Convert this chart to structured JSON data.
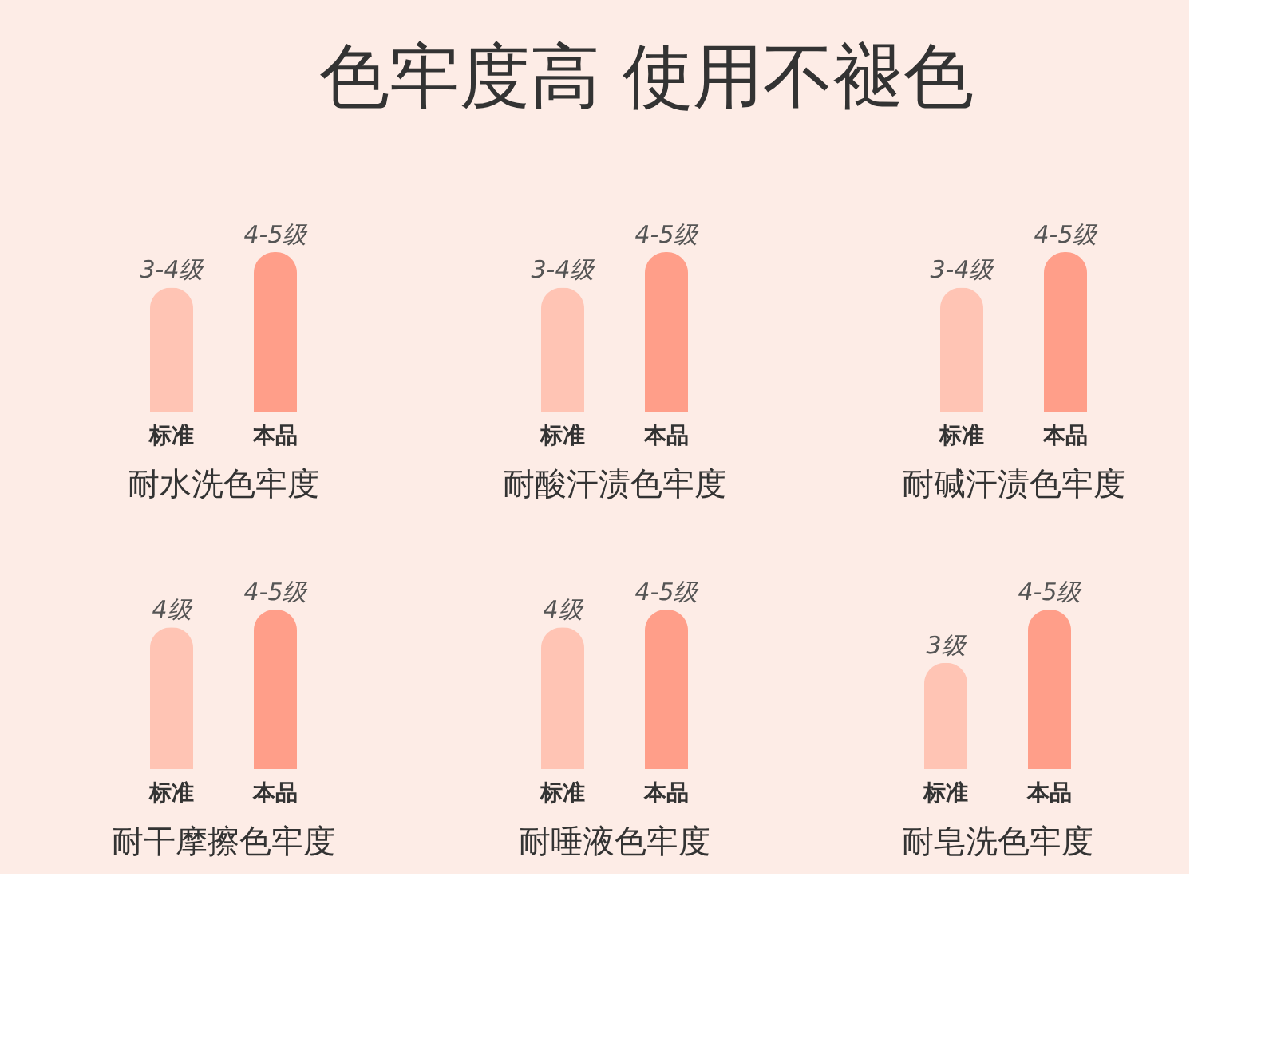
{
  "chart_data": [
    {
      "type": "other",
      "title": "色牢度高 使用不褪色"
    },
    {
      "type": "bar",
      "title": "耐水洗色牢度",
      "categories": [
        "标准",
        "本品"
      ],
      "values": [
        3.5,
        4.5
      ],
      "colors": [
        "#ffc4b4",
        "#ff9e89"
      ],
      "value_labels": [
        "3-4级",
        "4-5级"
      ]
    },
    {
      "type": "bar",
      "title": "耐酸汗渍色牢度",
      "categories": [
        "标准",
        "本品"
      ],
      "values": [
        3.5,
        4.5
      ],
      "colors": [
        "#ffc4b4",
        "#ff9e89"
      ],
      "value_labels": [
        "3-4级",
        "4-5级"
      ]
    },
    {
      "type": "bar",
      "title": "耐碱汗渍色牢度",
      "categories": [
        "标准",
        "本品"
      ],
      "values": [
        3.5,
        4.5
      ],
      "colors": [
        "#ffc4b4",
        "#ff9e89"
      ],
      "value_labels": [
        "3-4级",
        "4-5级"
      ]
    },
    {
      "type": "bar",
      "title": "耐干摩擦色牢度",
      "categories": [
        "标准",
        "本品"
      ],
      "values": [
        4,
        4.5
      ],
      "colors": [
        "#ffc4b4",
        "#ff9e89"
      ],
      "value_labels": [
        "4级",
        "4-5级"
      ]
    },
    {
      "type": "bar",
      "title": "耐唾液色牢度",
      "categories": [
        "标准",
        "本品"
      ],
      "values": [
        4,
        4.5
      ],
      "colors": [
        "#ffc4b4",
        "#ff9e89"
      ],
      "value_labels": [
        "4级",
        "4-5级"
      ]
    },
    {
      "type": "bar",
      "title": "耐皂洗色牢度",
      "categories": [
        "标准",
        "本品"
      ],
      "values": [
        3,
        4.5
      ],
      "colors": [
        "#ffc4b4",
        "#ff9e89"
      ],
      "value_labels": [
        "3级",
        "4-5级"
      ]
    }
  ]
}
